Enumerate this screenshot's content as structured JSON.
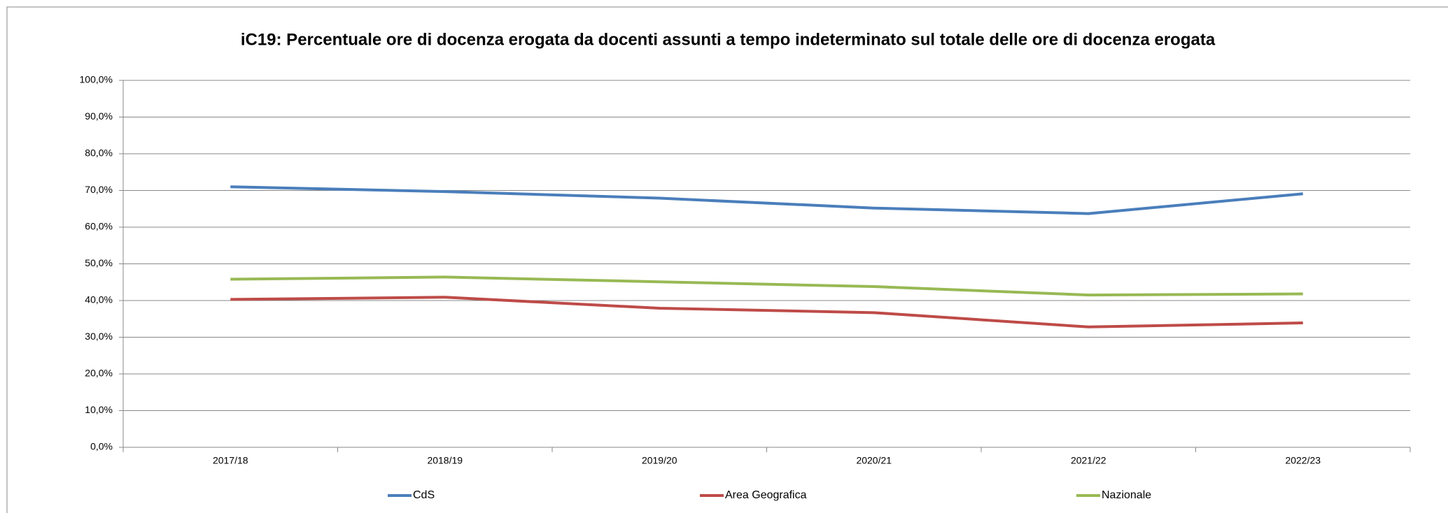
{
  "chart_data": {
    "type": "line",
    "title": "iC19: Percentuale ore di docenza erogata da docenti assunti a tempo indeterminato sul totale delle ore di docenza erogata",
    "categories": [
      "2017/18",
      "2018/19",
      "2019/20",
      "2020/21",
      "2021/22",
      "2022/23"
    ],
    "series": [
      {
        "name": "CdS",
        "color": "#4a7ebb",
        "values": [
          71.0,
          69.7,
          67.9,
          65.2,
          63.7,
          69.1
        ]
      },
      {
        "name": "Area Geografica",
        "color": "#be4b48",
        "values": [
          40.3,
          40.9,
          37.9,
          36.7,
          32.8,
          33.9
        ]
      },
      {
        "name": "Nazionale",
        "color": "#98b954",
        "values": [
          45.8,
          46.4,
          45.1,
          43.8,
          41.5,
          41.8
        ]
      }
    ],
    "ylim": [
      0,
      100
    ],
    "yticks": [
      {
        "value": 0,
        "label": "0,0%"
      },
      {
        "value": 10,
        "label": "10,0%"
      },
      {
        "value": 20,
        "label": "20,0%"
      },
      {
        "value": 30,
        "label": "30,0%"
      },
      {
        "value": 40,
        "label": "40,0%"
      },
      {
        "value": 50,
        "label": "50,0%"
      },
      {
        "value": 60,
        "label": "60,0%"
      },
      {
        "value": 70,
        "label": "70,0%"
      },
      {
        "value": 80,
        "label": "80,0%"
      },
      {
        "value": 90,
        "label": "90,0%"
      },
      {
        "value": 100,
        "label": "100,0%"
      }
    ],
    "grid": true,
    "legend": "bottom"
  }
}
